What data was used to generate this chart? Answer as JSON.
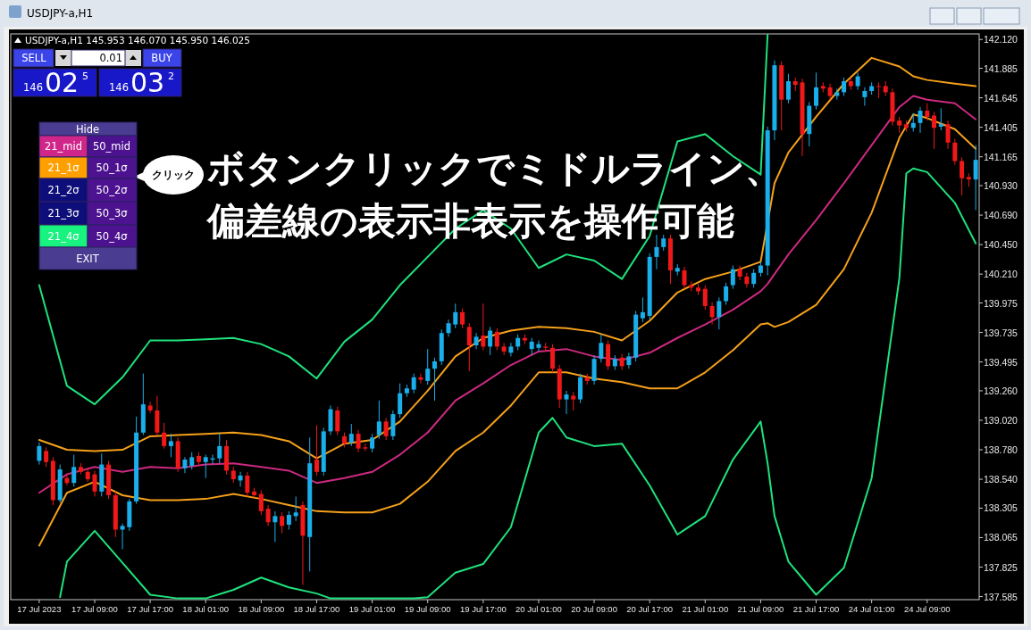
{
  "chart_data": {
    "type": "candlestick",
    "title": "USDJPY-a,H1",
    "subtitle": "USDJPY-a,H1  145.953 146.070 145.950 146.025",
    "categories": [
      "17 Jul 2023",
      null,
      null,
      null,
      null,
      null,
      null,
      null,
      "17 Jul 09:00",
      null,
      null,
      null,
      null,
      null,
      null,
      null,
      "17 Jul 17:00",
      null,
      null,
      null,
      null,
      null,
      null,
      null,
      "18 Jul 01:00",
      null,
      null,
      null,
      null,
      null,
      null,
      null,
      "18 Jul 09:00",
      null,
      null,
      null,
      null,
      null,
      null,
      null,
      "18 Jul 17:00",
      null,
      null,
      null,
      null,
      null,
      null,
      null,
      "19 Jul 01:00",
      null,
      null,
      null,
      null,
      null,
      null,
      null,
      "19 Jul 09:00",
      null,
      null,
      null,
      null,
      null,
      null,
      null,
      "19 Jul 17:00",
      null,
      null,
      null,
      null,
      null,
      null,
      null,
      "20 Jul 01:00",
      null,
      null,
      null,
      null,
      null,
      null,
      null,
      "20 Jul 09:00",
      null,
      null,
      null,
      null,
      null,
      null,
      null,
      "20 Jul 17:00",
      null,
      null,
      null,
      null,
      null,
      null,
      null,
      "21 Jul 01:00",
      null,
      null,
      null,
      null,
      null,
      null,
      null,
      "21 Jul 09:00",
      null,
      null,
      null,
      null,
      null,
      null,
      null,
      "21 Jul 17:00",
      null,
      null,
      null,
      null,
      null,
      null,
      null,
      "24 Jul 01:00",
      null,
      null,
      null,
      null,
      null,
      null,
      null,
      "24 Jul 09:00",
      null,
      null,
      null,
      null,
      null,
      null,
      null
    ],
    "ohlc": [
      [
        138.69,
        138.84,
        138.66,
        138.81
      ],
      [
        138.77,
        138.8,
        138.64,
        138.68
      ],
      [
        138.69,
        138.72,
        138.33,
        138.37
      ],
      [
        138.37,
        138.66,
        138.35,
        138.62
      ],
      [
        138.55,
        138.58,
        138.49,
        138.51
      ],
      [
        138.51,
        138.74,
        138.48,
        138.64
      ],
      [
        138.64,
        138.67,
        138.58,
        138.6
      ],
      [
        138.6,
        138.63,
        138.52,
        138.54
      ],
      [
        138.58,
        138.61,
        138.4,
        138.44
      ],
      [
        138.44,
        138.75,
        138.4,
        138.66
      ],
      [
        138.66,
        138.69,
        138.38,
        138.41
      ],
      [
        138.41,
        138.44,
        138.07,
        138.13
      ],
      [
        138.13,
        138.18,
        137.97,
        138.16
      ],
      [
        138.15,
        138.38,
        138.12,
        138.36
      ],
      [
        138.36,
        139.05,
        138.34,
        138.92
      ],
      [
        138.92,
        139.4,
        138.9,
        139.15
      ],
      [
        139.14,
        139.17,
        139.08,
        139.1
      ],
      [
        139.1,
        139.22,
        138.9,
        138.92
      ],
      [
        138.92,
        139.0,
        138.79,
        138.81
      ],
      [
        138.81,
        138.91,
        138.72,
        138.85
      ],
      [
        138.85,
        138.88,
        138.6,
        138.63
      ],
      [
        138.63,
        138.72,
        138.59,
        138.7
      ],
      [
        138.65,
        138.76,
        138.62,
        138.72
      ],
      [
        138.73,
        138.76,
        138.66,
        138.68
      ],
      [
        138.68,
        138.74,
        138.55,
        138.72
      ],
      [
        138.7,
        138.74,
        138.66,
        138.71
      ],
      [
        138.71,
        138.91,
        138.67,
        138.81
      ],
      [
        138.81,
        138.86,
        138.58,
        138.61
      ],
      [
        138.61,
        138.64,
        138.51,
        138.54
      ],
      [
        138.53,
        138.6,
        138.48,
        138.57
      ],
      [
        138.57,
        138.6,
        138.4,
        138.43
      ],
      [
        138.44,
        138.47,
        138.39,
        138.41
      ],
      [
        138.42,
        138.45,
        138.25,
        138.28
      ],
      [
        138.3,
        138.33,
        138.16,
        138.19
      ],
      [
        138.19,
        138.28,
        138.03,
        138.24
      ],
      [
        138.24,
        138.27,
        138.1,
        138.16
      ],
      [
        138.17,
        138.28,
        138.13,
        138.25
      ],
      [
        138.24,
        138.4,
        138.2,
        138.27
      ],
      [
        138.33,
        138.36,
        137.68,
        138.08
      ],
      [
        138.07,
        138.88,
        137.79,
        138.67
      ],
      [
        138.7,
        138.98,
        138.57,
        138.6
      ],
      [
        138.6,
        138.96,
        138.57,
        138.93
      ],
      [
        138.93,
        139.14,
        138.9,
        139.11
      ],
      [
        139.1,
        139.13,
        138.9,
        138.93
      ],
      [
        138.89,
        138.92,
        138.8,
        138.83
      ],
      [
        138.84,
        138.99,
        138.81,
        138.91
      ],
      [
        138.91,
        138.94,
        138.76,
        138.79
      ],
      [
        138.8,
        138.83,
        138.77,
        138.79
      ],
      [
        138.79,
        138.91,
        138.76,
        138.88
      ],
      [
        138.9,
        139.18,
        138.87,
        139.01
      ],
      [
        139.01,
        139.04,
        138.86,
        138.89
      ],
      [
        138.89,
        139.1,
        138.86,
        139.07
      ],
      [
        139.07,
        139.32,
        139.04,
        139.24
      ],
      [
        139.24,
        139.31,
        139.21,
        139.28
      ],
      [
        139.27,
        139.4,
        139.24,
        139.37
      ],
      [
        139.37,
        139.4,
        139.32,
        139.35
      ],
      [
        139.34,
        139.6,
        139.31,
        139.44
      ],
      [
        139.44,
        139.53,
        139.18,
        139.5
      ],
      [
        139.5,
        139.76,
        139.47,
        139.73
      ],
      [
        139.73,
        139.84,
        139.7,
        139.81
      ],
      [
        139.8,
        139.97,
        139.77,
        139.9
      ],
      [
        139.9,
        139.93,
        139.77,
        139.8
      ],
      [
        139.78,
        139.81,
        139.42,
        139.63
      ],
      [
        139.63,
        139.73,
        139.6,
        139.7
      ],
      [
        139.71,
        139.97,
        139.59,
        139.62
      ],
      [
        139.62,
        139.78,
        139.55,
        139.75
      ],
      [
        139.74,
        139.77,
        139.59,
        139.62
      ],
      [
        139.62,
        139.65,
        139.55,
        139.58
      ],
      [
        139.57,
        139.65,
        139.54,
        139.62
      ],
      [
        139.62,
        139.72,
        139.59,
        139.69
      ],
      [
        139.69,
        139.72,
        139.64,
        139.67
      ],
      [
        139.6,
        139.69,
        139.55,
        139.66
      ],
      [
        139.61,
        139.67,
        139.58,
        139.64
      ],
      [
        139.62,
        139.65,
        139.58,
        139.61
      ],
      [
        139.61,
        139.64,
        139.41,
        139.44
      ],
      [
        139.44,
        139.47,
        139.12,
        139.19
      ],
      [
        139.19,
        139.26,
        139.07,
        139.23
      ],
      [
        139.22,
        139.25,
        139.1,
        139.19
      ],
      [
        139.19,
        139.4,
        139.16,
        139.37
      ],
      [
        139.37,
        139.4,
        139.31,
        139.34
      ],
      [
        139.34,
        139.55,
        139.31,
        139.52
      ],
      [
        139.52,
        139.72,
        139.49,
        139.65
      ],
      [
        139.64,
        139.67,
        139.43,
        139.46
      ],
      [
        139.46,
        139.55,
        139.43,
        139.52
      ],
      [
        139.53,
        139.56,
        139.43,
        139.46
      ],
      [
        139.47,
        139.57,
        139.44,
        139.54
      ],
      [
        139.53,
        139.91,
        139.5,
        139.88
      ],
      [
        139.85,
        140.02,
        139.82,
        139.9
      ],
      [
        139.87,
        140.38,
        139.84,
        140.35
      ],
      [
        140.35,
        140.53,
        140.25,
        140.43
      ],
      [
        140.43,
        140.53,
        140.4,
        140.5
      ],
      [
        140.5,
        140.53,
        140.13,
        140.24
      ],
      [
        140.23,
        140.29,
        140.2,
        140.26
      ],
      [
        140.24,
        140.27,
        140.09,
        140.12
      ],
      [
        140.12,
        140.15,
        140.07,
        140.1
      ],
      [
        140.1,
        140.13,
        140.04,
        140.07
      ],
      [
        140.09,
        140.12,
        139.92,
        139.95
      ],
      [
        139.95,
        139.98,
        139.8,
        139.86
      ],
      [
        139.86,
        140.02,
        139.76,
        139.99
      ],
      [
        139.99,
        140.14,
        139.96,
        140.11
      ],
      [
        140.12,
        140.28,
        140.09,
        140.25
      ],
      [
        140.25,
        140.28,
        140.16,
        140.19
      ],
      [
        140.19,
        140.22,
        140.1,
        140.13
      ],
      [
        140.13,
        140.25,
        140.1,
        140.22
      ],
      [
        140.22,
        140.31,
        140.19,
        140.28
      ],
      [
        140.28,
        141.41,
        140.2,
        141.38
      ],
      [
        141.38,
        141.95,
        141.3,
        141.91
      ],
      [
        141.91,
        141.94,
        141.38,
        141.63
      ],
      [
        141.63,
        141.84,
        141.6,
        141.78
      ],
      [
        141.78,
        141.81,
        141.7,
        141.75
      ],
      [
        141.77,
        141.8,
        141.17,
        141.35
      ],
      [
        141.35,
        141.61,
        141.25,
        141.58
      ],
      [
        141.58,
        141.85,
        141.55,
        141.73
      ],
      [
        141.74,
        141.77,
        141.69,
        141.72
      ],
      [
        141.73,
        141.76,
        141.63,
        141.66
      ],
      [
        141.66,
        141.72,
        141.63,
        141.69
      ],
      [
        141.69,
        141.81,
        141.66,
        141.78
      ],
      [
        141.78,
        141.81,
        141.71,
        141.74
      ],
      [
        141.74,
        141.85,
        141.71,
        141.82
      ],
      [
        141.65,
        141.73,
        141.58,
        141.7
      ],
      [
        141.7,
        141.77,
        141.67,
        141.74
      ],
      [
        141.74,
        141.77,
        141.64,
        141.74
      ],
      [
        141.74,
        141.78,
        141.66,
        141.69
      ],
      [
        141.69,
        141.72,
        141.42,
        141.45
      ],
      [
        141.46,
        141.49,
        141.36,
        141.42
      ],
      [
        141.43,
        141.46,
        141.37,
        141.4
      ],
      [
        141.4,
        141.52,
        141.37,
        141.44
      ],
      [
        141.44,
        141.57,
        141.36,
        141.54
      ],
      [
        141.54,
        141.6,
        141.46,
        141.49
      ],
      [
        141.5,
        141.53,
        141.23,
        141.4
      ],
      [
        141.41,
        141.56,
        141.38,
        141.43
      ],
      [
        141.43,
        141.46,
        141.23,
        141.28
      ],
      [
        141.28,
        141.31,
        141.1,
        141.13
      ],
      [
        141.13,
        141.16,
        140.85,
        140.99
      ],
      [
        141.0,
        141.03,
        140.92,
        140.98
      ],
      [
        140.98,
        141.26,
        140.73,
        141.14
      ]
    ],
    "colors": [
      "#1aaeea",
      "#f01818",
      "#f01818",
      "#1aaeea",
      "#f01818",
      "#1aaeea",
      "#f01818",
      "#f01818",
      "#f01818",
      "#1aaeea",
      "#f01818",
      "#f01818",
      "#1aaeea",
      "#1aaeea",
      "#1aaeea",
      "#1aaeea",
      "#f01818",
      "#f01818",
      "#f01818",
      "#1aaeea",
      "#f01818",
      "#1aaeea",
      "#1aaeea",
      "#f01818",
      "#1aaeea",
      "#1aaeea",
      "#1aaeea",
      "#f01818",
      "#f01818",
      "#1aaeea",
      "#f01818",
      "#f01818",
      "#f01818",
      "#f01818",
      "#1aaeea",
      "#f01818",
      "#1aaeea",
      "#1aaeea",
      "#f01818",
      "#1aaeea",
      "#f01818",
      "#1aaeea",
      "#1aaeea",
      "#f01818",
      "#f01818",
      "#1aaeea",
      "#f01818",
      "#f01818",
      "#1aaeea",
      "#1aaeea",
      "#f01818",
      "#1aaeea",
      "#1aaeea",
      "#1aaeea",
      "#1aaeea",
      "#f01818",
      "#1aaeea",
      "#1aaeea",
      "#1aaeea",
      "#1aaeea",
      "#1aaeea",
      "#f01818",
      "#f01818",
      "#1aaeea",
      "#f01818",
      "#1aaeea",
      "#f01818",
      "#f01818",
      "#1aaeea",
      "#1aaeea",
      "#f01818",
      "#1aaeea",
      "#1aaeea",
      "#f01818",
      "#f01818",
      "#f01818",
      "#1aaeea",
      "#f01818",
      "#1aaeea",
      "#f01818",
      "#1aaeea",
      "#1aaeea",
      "#f01818",
      "#1aaeea",
      "#f01818",
      "#1aaeea",
      "#1aaeea",
      "#1aaeea",
      "#1aaeea",
      "#1aaeea",
      "#1aaeea",
      "#f01818",
      "#1aaeea",
      "#f01818",
      "#f01818",
      "#f01818",
      "#f01818",
      "#f01818",
      "#1aaeea",
      "#1aaeea",
      "#1aaeea",
      "#f01818",
      "#f01818",
      "#1aaeea",
      "#1aaeea",
      "#1aaeea",
      "#1aaeea",
      "#f01818",
      "#1aaeea",
      "#f01818",
      "#f01818",
      "#1aaeea",
      "#1aaeea",
      "#f01818",
      "#f01818",
      "#1aaeea",
      "#1aaeea",
      "#f01818",
      "#1aaeea",
      "#1aaeea",
      "#1aaeea",
      "#f01818",
      "#f01818",
      "#f01818",
      "#f01818",
      "#f01818",
      "#1aaeea",
      "#1aaeea",
      "#f01818",
      "#f01818",
      "#1aaeea",
      "#f01818",
      "#f01818",
      "#f01818",
      "#f01818",
      "#1aaeea"
    ],
    "series": [
      {
        "type": "line",
        "color": "#cc2a80",
        "values": [
          138.43,
          null,
          null,
          null,
          138.58,
          null,
          null,
          null,
          138.64,
          null,
          null,
          null,
          138.6,
          null,
          null,
          null,
          138.64,
          null,
          null,
          null,
          138.63,
          null,
          null,
          null,
          138.66,
          null,
          null,
          null,
          138.67,
          null,
          null,
          null,
          138.64,
          null,
          null,
          null,
          138.61,
          null,
          null,
          null,
          138.51,
          null,
          null,
          null,
          138.55,
          null,
          null,
          null,
          138.6,
          null,
          null,
          null,
          138.74,
          null,
          null,
          null,
          138.92,
          null,
          null,
          null,
          139.18,
          null,
          null,
          null,
          139.32,
          null,
          null,
          null,
          139.47,
          null,
          null,
          null,
          139.58,
          null,
          null,
          null,
          139.6,
          null,
          null,
          null,
          139.54,
          null,
          null,
          null,
          139.51,
          null,
          null,
          null,
          139.57,
          null,
          null,
          null,
          139.69,
          null,
          null,
          null,
          139.8,
          null,
          null,
          null,
          139.92,
          null,
          null,
          null,
          140.07,
          140.13,
          null,
          null,
          140.37,
          null,
          null,
          null,
          140.65,
          null,
          null,
          null,
          140.95,
          null,
          null,
          null,
          141.26,
          null,
          null,
          null,
          141.57,
          null,
          141.66,
          null,
          141.63,
          null,
          null,
          null,
          141.6,
          null,
          null,
          141.47
        ]
      },
      {
        "type": "line",
        "color": "#f5a01a",
        "values": [
          138.86,
          null,
          null,
          null,
          138.78,
          null,
          null,
          null,
          138.77,
          null,
          null,
          null,
          138.78,
          null,
          null,
          null,
          138.89,
          null,
          null,
          null,
          138.9,
          null,
          null,
          null,
          138.91,
          null,
          null,
          null,
          138.92,
          null,
          null,
          null,
          138.9,
          null,
          null,
          null,
          138.85,
          null,
          null,
          null,
          138.71,
          null,
          null,
          null,
          138.83,
          null,
          null,
          null,
          138.86,
          null,
          null,
          null,
          139.01,
          null,
          null,
          null,
          139.26,
          null,
          null,
          null,
          139.54,
          null,
          null,
          null,
          139.69,
          null,
          null,
          null,
          139.75,
          null,
          null,
          null,
          139.78,
          null,
          null,
          null,
          139.77,
          null,
          null,
          null,
          139.74,
          null,
          null,
          null,
          139.67,
          null,
          null,
          null,
          139.83,
          null,
          null,
          null,
          140.06,
          null,
          null,
          null,
          140.17,
          null,
          null,
          null,
          140.23,
          null,
          null,
          null,
          140.31,
          null,
          140.95,
          null,
          141.2,
          null,
          null,
          null,
          141.49,
          null,
          null,
          null,
          141.76,
          null,
          null,
          null,
          141.97,
          null,
          null,
          null,
          141.9,
          null,
          141.82,
          null,
          141.79,
          null,
          null,
          null,
          141.76,
          null,
          null,
          141.74
        ]
      },
      {
        "type": "line",
        "color": "#f5a01a",
        "values": [
          138.0,
          null,
          null,
          null,
          138.43,
          null,
          null,
          null,
          138.52,
          null,
          null,
          null,
          138.41,
          null,
          null,
          null,
          138.37,
          null,
          null,
          null,
          138.37,
          null,
          null,
          null,
          138.38,
          null,
          null,
          null,
          138.42,
          null,
          null,
          null,
          138.38,
          null,
          null,
          null,
          138.33,
          null,
          null,
          null,
          138.28,
          null,
          null,
          null,
          138.27,
          null,
          null,
          null,
          138.27,
          null,
          null,
          null,
          138.34,
          null,
          null,
          null,
          138.52,
          null,
          null,
          null,
          138.77,
          null,
          null,
          null,
          138.92,
          null,
          null,
          null,
          139.14,
          null,
          null,
          null,
          139.41,
          null,
          null,
          null,
          139.41,
          null,
          null,
          null,
          139.36,
          null,
          null,
          null,
          139.33,
          null,
          null,
          null,
          139.28,
          null,
          null,
          null,
          139.28,
          null,
          null,
          null,
          139.41,
          null,
          null,
          null,
          139.59,
          null,
          null,
          null,
          139.8,
          139.81,
          139.78,
          null,
          139.82,
          null,
          null,
          null,
          139.96,
          null,
          null,
          null,
          140.25,
          null,
          null,
          null,
          140.71,
          null,
          null,
          null,
          141.32,
          null,
          141.51,
          null,
          141.48,
          null,
          null,
          null,
          141.39,
          null,
          null,
          141.23
        ]
      },
      {
        "type": "line",
        "color": "#1fe27c",
        "values": [
          140.12,
          null,
          null,
          null,
          139.3,
          null,
          null,
          null,
          139.15,
          null,
          null,
          null,
          139.37,
          null,
          null,
          null,
          139.67,
          null,
          null,
          null,
          139.67,
          null,
          null,
          null,
          139.68,
          null,
          null,
          null,
          139.69,
          null,
          null,
          null,
          139.64,
          null,
          null,
          null,
          139.54,
          null,
          null,
          null,
          139.36,
          null,
          null,
          null,
          139.66,
          null,
          null,
          null,
          139.84,
          null,
          null,
          null,
          140.12,
          null,
          null,
          null,
          140.35,
          null,
          null,
          null,
          140.58,
          null,
          null,
          null,
          140.73,
          null,
          null,
          null,
          140.58,
          null,
          null,
          null,
          140.26,
          null,
          null,
          null,
          140.37,
          null,
          null,
          null,
          140.32,
          null,
          null,
          null,
          140.17,
          null,
          null,
          null,
          140.52,
          null,
          null,
          null,
          141.29,
          null,
          null,
          null,
          141.35,
          null,
          null,
          null,
          141.17,
          null,
          null,
          null,
          141.02,
          142.16,
          null,
          null,
          null,
          null,
          null,
          null,
          null,
          null,
          null,
          null,
          null,
          null,
          null,
          null,
          null,
          null,
          null,
          null,
          null,
          null,
          null,
          null,
          null,
          null,
          null,
          null,
          null,
          null,
          null,
          null
        ]
      },
      {
        "type": "line",
        "color": "#1fe27c",
        "values": [
          null,
          null,
          null,
          137.58,
          137.87,
          null,
          null,
          null,
          138.12,
          null,
          null,
          null,
          137.86,
          null,
          null,
          null,
          137.6,
          null,
          null,
          null,
          137.57,
          null,
          null,
          null,
          137.57,
          null,
          null,
          null,
          137.64,
          null,
          null,
          null,
          137.74,
          null,
          null,
          null,
          137.66,
          null,
          null,
          null,
          137.61,
          null,
          137.57,
          null,
          null,
          null,
          null,
          null,
          null,
          null,
          null,
          null,
          null,
          null,
          137.57,
          null,
          137.58,
          null,
          null,
          null,
          137.78,
          null,
          null,
          null,
          137.85,
          null,
          null,
          null,
          138.15,
          null,
          null,
          null,
          138.92,
          null,
          139.04,
          null,
          138.88,
          null,
          null,
          null,
          138.81,
          null,
          null,
          null,
          138.83,
          null,
          null,
          null,
          138.49,
          null,
          null,
          null,
          138.09,
          null,
          null,
          null,
          138.24,
          null,
          null,
          null,
          138.7,
          null,
          null,
          null,
          139.01,
          138.67,
          138.24,
          null,
          137.87,
          null,
          null,
          null,
          137.6,
          null,
          null,
          null,
          137.82,
          null,
          null,
          null,
          138.55,
          null,
          null,
          null,
          140.18,
          141.03,
          141.07,
          null,
          141.04,
          null,
          null,
          null,
          140.79,
          null,
          null,
          140.46
        ]
      }
    ],
    "ylim": [
      137.56,
      142.165
    ],
    "yticks": [
      {
        "value": 142.12,
        "label": "142.120"
      },
      {
        "value": 141.885,
        "label": "141.885"
      },
      {
        "value": 141.645,
        "label": "141.645"
      },
      {
        "value": 141.405,
        "label": "141.405"
      },
      {
        "value": 141.165,
        "label": "141.165"
      },
      {
        "value": 140.93,
        "label": "140.930"
      },
      {
        "value": 140.69,
        "label": "140.690"
      },
      {
        "value": 140.45,
        "label": "140.450"
      },
      {
        "value": 140.21,
        "label": "140.210"
      },
      {
        "value": 139.975,
        "label": "139.975"
      },
      {
        "value": 139.735,
        "label": "139.735"
      },
      {
        "value": 139.495,
        "label": "139.495"
      },
      {
        "value": 139.26,
        "label": "139.260"
      },
      {
        "value": 139.02,
        "label": "139.020"
      },
      {
        "value": 138.78,
        "label": "138.780"
      },
      {
        "value": 138.54,
        "label": "138.540"
      },
      {
        "value": 138.305,
        "label": "138.305"
      },
      {
        "value": 138.065,
        "label": "138.065"
      },
      {
        "value": 137.825,
        "label": "137.825"
      },
      {
        "value": 137.585,
        "label": "137.585"
      }
    ],
    "annotations": [
      "ボタンクリックでミドルライン、",
      "偏差線の表示非表示を操作可能",
      "クリック",
      "SELL",
      "0.01",
      "BUY",
      "146",
      "02",
      "5",
      "146",
      "03",
      "2",
      "Hide",
      "21_mid",
      "50_mid",
      "21_1σ",
      "50_1σ",
      "21_2σ",
      "50_2σ",
      "21_3σ",
      "50_3σ",
      "21_4σ",
      "50_4σ",
      "EXIT"
    ]
  }
}
